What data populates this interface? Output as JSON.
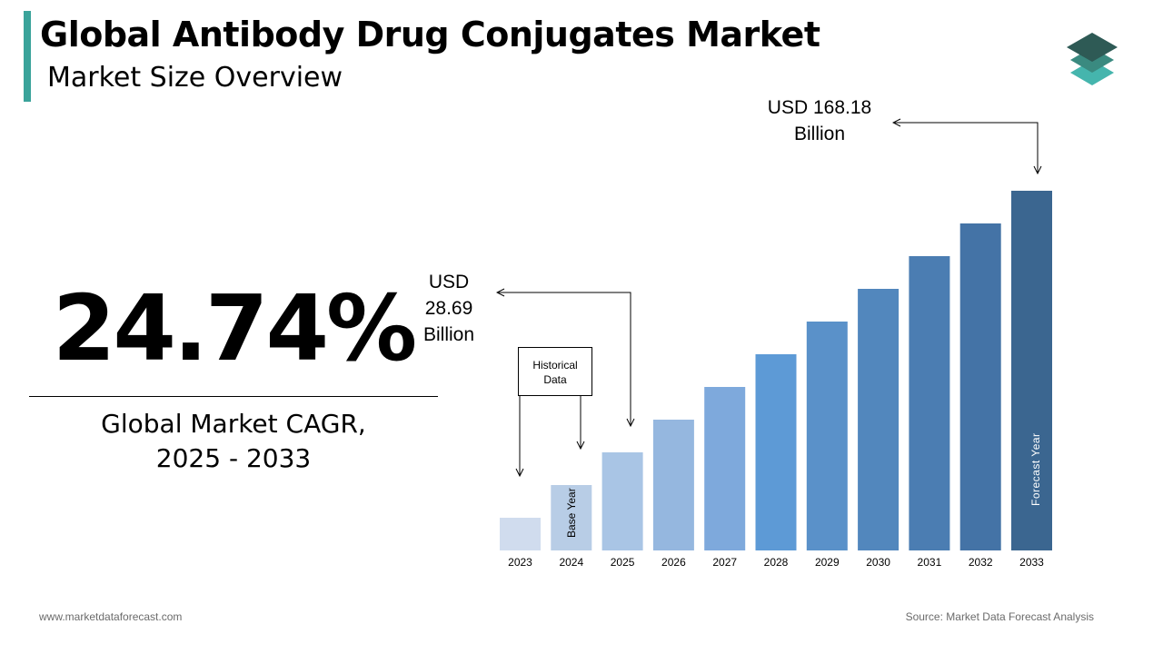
{
  "header": {
    "title": "Global Antibody Drug Conjugates Market",
    "subtitle": "Market Size Overview"
  },
  "cagr": {
    "value": "24.74%",
    "label_line1": "Global Market CAGR,",
    "label_line2": "2025 - 2033"
  },
  "annotations": {
    "start_value_lines": [
      "USD",
      "28.69",
      "Billion"
    ],
    "end_value_lines": [
      "USD 168.18",
      "Billion"
    ],
    "historical_lines": [
      "Historical",
      "Data"
    ],
    "base_year_label": "Base Year",
    "forecast_year_label": "Forecast Year"
  },
  "footer": {
    "website": "www.marketdataforecast.com",
    "source": "Source: Market Data Forecast Analysis"
  },
  "colors": {
    "accent": "#3aa39a",
    "logo": [
      "#2e5a55",
      "#3a8a80",
      "#45b5ad"
    ]
  },
  "chart_data": {
    "type": "bar",
    "title": "",
    "xlabel": "",
    "ylabel": "",
    "categories": [
      "2023",
      "2024",
      "2025",
      "2026",
      "2027",
      "2028",
      "2029",
      "2030",
      "2031",
      "2032",
      "2033"
    ],
    "values": [
      1,
      2,
      3,
      4,
      5,
      6,
      7,
      8,
      9,
      10,
      11
    ],
    "value_note": "relative bar heights; only 2025 (28.69) and 2033 (168.18) values in USD Billion are printed",
    "labeled_values": {
      "2025": 28.69,
      "2033": 168.18
    },
    "unit": "USD Billion",
    "colors": [
      "#d0dcee",
      "#b8cde6",
      "#a9c5e5",
      "#95b7df",
      "#7ea9dc",
      "#5d9ad6",
      "#5a91c9",
      "#5287bd",
      "#4b7db2",
      "#4473a6",
      "#3b6690"
    ],
    "grid": false,
    "legend": "none"
  }
}
